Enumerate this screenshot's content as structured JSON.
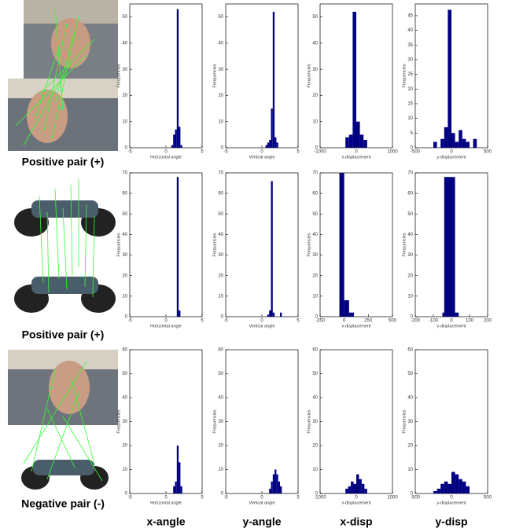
{
  "row_labels": [
    "Positive pair (+)",
    "Positive pair (+)",
    "Negative pair (-)"
  ],
  "column_labels": [
    "x-angle",
    "y-angle",
    "x-disp",
    "y-disp"
  ],
  "chart_data": [
    {
      "type": "histogram",
      "xlabel": "Horizontal angle",
      "ylabel": "Frequencies",
      "color": "#000080",
      "bins": [
        0.75,
        1,
        1.25,
        1.5,
        1.75,
        2,
        2.25
      ],
      "values": [
        1,
        5,
        7,
        53,
        8,
        1
      ],
      "xlim": [
        -5,
        5
      ],
      "xticks": [
        -5,
        0,
        5
      ],
      "ylim": [
        0,
        55
      ],
      "yticks": [
        0,
        10,
        20,
        30,
        40,
        50
      ]
    },
    {
      "type": "histogram",
      "xlabel": "Vertical angle",
      "ylabel": "Frequencies",
      "color": "#000080",
      "bins": [
        0.5,
        0.75,
        1,
        1.25,
        1.5,
        1.75,
        2,
        2.25
      ],
      "values": [
        1,
        2,
        3,
        15,
        52,
        4,
        2
      ],
      "xlim": [
        -5,
        5
      ],
      "xticks": [
        -5,
        0,
        5
      ],
      "ylim": [
        0,
        55
      ],
      "yticks": [
        0,
        10,
        20,
        30,
        40,
        50
      ]
    },
    {
      "type": "histogram",
      "xlabel": "x-displacement",
      "ylabel": "Frequencies",
      "color": "#000080",
      "bins": [
        -300,
        -200,
        -100,
        0,
        100,
        200,
        300
      ],
      "values": [
        4,
        5,
        52,
        10,
        5,
        3
      ],
      "xlim": [
        -1000,
        1000
      ],
      "xticks": [
        -1000,
        0,
        1000
      ],
      "ylim": [
        0,
        55
      ],
      "yticks": [
        0,
        10,
        20,
        30,
        40,
        50
      ]
    },
    {
      "type": "histogram",
      "xlabel": "y-displacement",
      "ylabel": "Frequencies",
      "color": "#000080",
      "bins": [
        -250,
        -200,
        -150,
        -100,
        -50,
        0,
        50,
        100,
        150,
        200,
        250,
        300,
        350
      ],
      "values": [
        2,
        0,
        3,
        7,
        47,
        5,
        2,
        6,
        3,
        2,
        0,
        3
      ],
      "xlim": [
        -500,
        500
      ],
      "xticks": [
        -500,
        0,
        500
      ],
      "ylim": [
        0,
        49
      ],
      "yticks": [
        0,
        5,
        10,
        15,
        20,
        25,
        30,
        35,
        40,
        45
      ]
    },
    {
      "type": "histogram",
      "xlabel": "Horizontal angle",
      "ylabel": "Frequencies",
      "color": "#000080",
      "bins": [
        1.5,
        1.75,
        2
      ],
      "values": [
        68,
        3
      ],
      "xlim": [
        -5,
        5
      ],
      "xticks": [
        -5,
        0,
        5
      ],
      "ylim": [
        0,
        70
      ],
      "yticks": [
        0,
        10,
        20,
        30,
        40,
        50,
        60,
        70
      ]
    },
    {
      "type": "histogram",
      "xlabel": "Vertical angle",
      "ylabel": "Frequencies",
      "color": "#000080",
      "bins": [
        0.75,
        1,
        1.25,
        1.5,
        1.75,
        2,
        2.25,
        2.5,
        2.75
      ],
      "values": [
        1,
        3,
        66,
        2,
        0,
        0,
        0,
        2
      ],
      "xlim": [
        -5,
        5
      ],
      "xticks": [
        -5,
        0,
        5
      ],
      "ylim": [
        0,
        70
      ],
      "yticks": [
        0,
        10,
        20,
        30,
        40,
        50,
        60,
        70
      ]
    },
    {
      "type": "histogram",
      "xlabel": "x-displacement",
      "ylabel": "Frequencies",
      "color": "#000080",
      "bins": [
        -50,
        0,
        50,
        100
      ],
      "values": [
        70,
        8,
        2
      ],
      "xlim": [
        -250,
        500
      ],
      "xticks": [
        -250,
        0,
        250,
        500
      ],
      "ylim": [
        0,
        70
      ],
      "yticks": [
        0,
        10,
        20,
        30,
        40,
        50,
        60,
        70
      ]
    },
    {
      "type": "histogram",
      "xlabel": "y-displacement",
      "ylabel": "Frequencies",
      "color": "#000080",
      "bins": [
        -50,
        -40,
        20,
        40
      ],
      "values": [
        2,
        68,
        2
      ],
      "xlim": [
        -200,
        200
      ],
      "xticks": [
        -200,
        -100,
        0,
        100,
        200
      ],
      "ylim": [
        0,
        70
      ],
      "yticks": [
        0,
        10,
        20,
        30,
        40,
        50,
        60,
        70
      ]
    },
    {
      "type": "histogram",
      "xlabel": "Horizontal angle",
      "ylabel": "Frequencies",
      "color": "#000080",
      "bins": [
        1,
        1.25,
        1.5,
        1.75,
        2,
        2.25
      ],
      "values": [
        3,
        5,
        20,
        13,
        3
      ],
      "xlim": [
        -5,
        5
      ],
      "xticks": [
        -5,
        0,
        5
      ],
      "ylim": [
        0,
        60
      ],
      "yticks": [
        0,
        10,
        20,
        30,
        40,
        50,
        60
      ]
    },
    {
      "type": "histogram",
      "xlabel": "Vertical angle",
      "ylabel": "Frequencies",
      "color": "#000080",
      "bins": [
        1,
        1.25,
        1.5,
        1.75,
        2,
        2.25,
        2.5,
        2.75
      ],
      "values": [
        2,
        5,
        8,
        10,
        8,
        5,
        3
      ],
      "xlim": [
        -5,
        5
      ],
      "xticks": [
        -5,
        0,
        5
      ],
      "ylim": [
        0,
        60
      ],
      "yticks": [
        0,
        10,
        20,
        30,
        40,
        50,
        60
      ]
    },
    {
      "type": "histogram",
      "xlabel": "x-displacement",
      "ylabel": "Frequencies",
      "color": "#000080",
      "bins": [
        -300,
        -225,
        -150,
        -75,
        0,
        75,
        150,
        225,
        300
      ],
      "values": [
        2,
        3,
        5,
        4,
        8,
        6,
        4,
        2
      ],
      "xlim": [
        -1000,
        1000
      ],
      "xticks": [
        -1000,
        0,
        1000
      ],
      "ylim": [
        0,
        60
      ],
      "yticks": [
        0,
        10,
        20,
        30,
        40,
        50,
        60
      ]
    },
    {
      "type": "histogram",
      "xlabel": "y-displacement",
      "ylabel": "Frequencies",
      "color": "#000080",
      "bins": [
        -250,
        -200,
        -150,
        -100,
        -50,
        0,
        50,
        100,
        150,
        200,
        250
      ],
      "values": [
        1,
        2,
        4,
        5,
        4,
        9,
        8,
        6,
        5,
        3
      ],
      "xlim": [
        -500,
        500
      ],
      "xticks": [
        -500,
        0,
        500
      ],
      "ylim": [
        0,
        60
      ],
      "yticks": [
        0,
        10,
        20,
        30,
        40,
        50,
        60
      ]
    }
  ]
}
